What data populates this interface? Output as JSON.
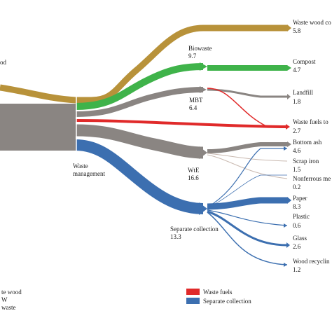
{
  "colors": {
    "wood": "#B8923A",
    "biowaste": "#3FB34A",
    "grey": "#8A8582",
    "red": "#E02A2A",
    "blue": "#3C6FB0",
    "thin": "#C9B9B0"
  },
  "labels": {
    "source_wood_fragment": "od",
    "hub": [
      "Waste",
      "management"
    ],
    "biowaste": "Biowaste",
    "biowaste_value": "9.7",
    "mbt": "MBT",
    "mbt_value": "6.4",
    "wie": "WtE",
    "wie_value": "16.6",
    "separate_collection": "Separate collection",
    "separate_collection_value": "13.3"
  },
  "outputs": [
    {
      "label": "Waste wood co",
      "value": "5.8"
    },
    {
      "label": "Compost",
      "value": "4.7"
    },
    {
      "label": "Landfill",
      "value": "1.8"
    },
    {
      "label": "Waste fuels to",
      "value": "2.7"
    },
    {
      "label": "Bottom ash",
      "value": "4.6"
    },
    {
      "label": "Scrap iron",
      "value": "1.5"
    },
    {
      "label": "Nonferrous me",
      "value": "0.2"
    },
    {
      "label": "Paper",
      "value": "8.3"
    },
    {
      "label": "Plastic",
      "value": "0.6"
    },
    {
      "label": "Glass",
      "value": "2.6"
    },
    {
      "label": "Wood recyclin",
      "value": "1.2"
    }
  ],
  "legend_left": [
    "te wood",
    "W",
    "waste"
  ],
  "legend_right": [
    {
      "label": "Waste fuels",
      "color": "#E02A2A"
    },
    {
      "label": "Separate collection",
      "color": "#3C6FB0"
    }
  ]
}
